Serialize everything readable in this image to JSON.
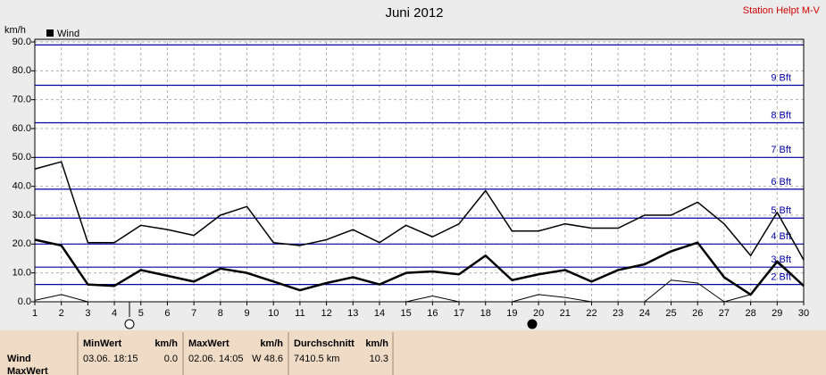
{
  "chart_data": {
    "type": "line",
    "title": "Juni 2012",
    "station": "Station Helpt M-V",
    "y_label": "km/h",
    "x": [
      1,
      2,
      3,
      4,
      5,
      6,
      7,
      8,
      9,
      10,
      11,
      12,
      13,
      14,
      15,
      16,
      17,
      18,
      19,
      20,
      21,
      22,
      23,
      24,
      25,
      26,
      27,
      28,
      29,
      30
    ],
    "xlim": [
      1,
      30
    ],
    "xticks": [
      1,
      2,
      3,
      4,
      5,
      6,
      7,
      8,
      9,
      10,
      11,
      12,
      13,
      14,
      15,
      16,
      17,
      18,
      19,
      20,
      21,
      22,
      23,
      24,
      25,
      26,
      27,
      28,
      29,
      30
    ],
    "ylim": [
      0,
      90
    ],
    "yticks": [
      {
        "value": 0,
        "label": "0.0"
      },
      {
        "value": 10,
        "label": "10.0"
      },
      {
        "value": 20,
        "label": "20.0"
      },
      {
        "value": 30,
        "label": "30.0"
      },
      {
        "value": 40,
        "label": "40.0"
      },
      {
        "value": 50,
        "label": "50.0"
      },
      {
        "value": 60,
        "label": "60.0"
      },
      {
        "value": 70,
        "label": "70.0"
      },
      {
        "value": 80,
        "label": "80.0"
      },
      {
        "value": 90,
        "label": "90.0"
      }
    ],
    "grid": true,
    "legend": "top-left",
    "reference_color": "#0000a0",
    "reference_lines": [
      {
        "value": 6,
        "label": "2 Bft"
      },
      {
        "value": 12,
        "label": "3 Bft"
      },
      {
        "value": 20,
        "label": "4 Bft"
      },
      {
        "value": 29,
        "label": "5 Bft"
      },
      {
        "value": 39,
        "label": "6 Bft"
      },
      {
        "value": 50,
        "label": "7 Bft"
      },
      {
        "value": 62,
        "label": "8 Bft"
      },
      {
        "value": 75,
        "label": "9 Bft"
      },
      {
        "value": 89
      }
    ],
    "series": [
      {
        "name": "Wind",
        "color": "#000000",
        "width": 2.5,
        "values": [
          21.5,
          19.5,
          6,
          5.5,
          11,
          9,
          7,
          11.5,
          10,
          7,
          4,
          6.5,
          8.5,
          6,
          10,
          10.5,
          9.5,
          16,
          7.5,
          9.5,
          11,
          7,
          11,
          13,
          17.5,
          20.5,
          8.5,
          2.5,
          14,
          5.5
        ]
      },
      {
        "color": "#000000",
        "width": 1.5,
        "values": [
          46,
          48.5,
          20.5,
          20.5,
          26.5,
          25,
          23,
          30,
          33,
          20.5,
          19.5,
          21.5,
          25,
          20.5,
          26.5,
          22.5,
          27,
          38.5,
          24.5,
          24.5,
          27,
          25.5,
          25.5,
          30,
          30,
          34.5,
          27,
          16,
          31,
          14.5
        ]
      },
      {
        "color": "#000000",
        "width": 1,
        "values": [
          0.5,
          2.5,
          0,
          0,
          0,
          0,
          0,
          0,
          0,
          0,
          0,
          0,
          0,
          0,
          0,
          2,
          0,
          0,
          0,
          2.5,
          1.5,
          0,
          0,
          0,
          7.5,
          6.5,
          0,
          2.5,
          13.5,
          5.5
        ]
      }
    ]
  },
  "summary": {
    "row_labels": [
      "Wind",
      "MaxWert"
    ],
    "columns": [
      {
        "header": "MinWert",
        "unit": "km/h",
        "cells": [
          "03.06.",
          "18:15",
          "0.0"
        ]
      },
      {
        "header": "MaxWert",
        "unit": "km/h",
        "cells": [
          "02.06.",
          "14:05",
          "W 48.6"
        ]
      },
      {
        "header": "Durchschnitt",
        "unit": "km/h",
        "cells": [
          "7410.5 km",
          "10.3"
        ]
      }
    ]
  }
}
